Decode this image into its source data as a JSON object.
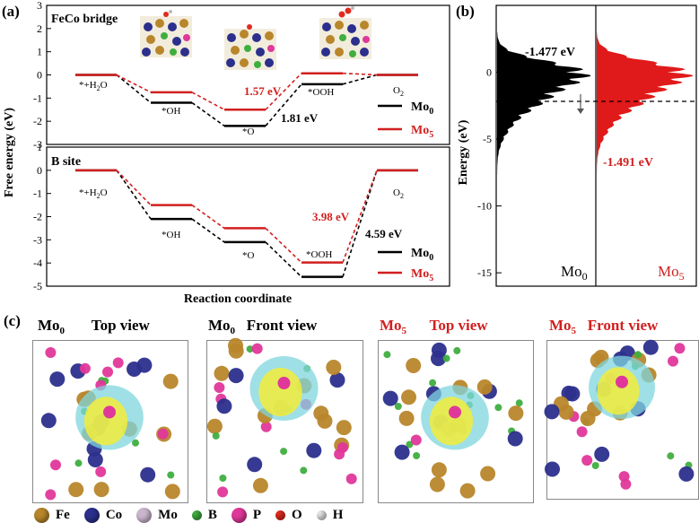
{
  "chart_data": [
    {
      "panel": "(a)",
      "type": "line",
      "subplot": "FeCo bridge",
      "x_categories": [
        "*+H2O",
        "*OH",
        "*O",
        "*OOH",
        "O2"
      ],
      "series": [
        {
          "name": "Mo0",
          "color": "#000000",
          "values": [
            0.0,
            -1.2,
            -2.2,
            -0.4,
            0.0
          ]
        },
        {
          "name": "Mo5",
          "color": "#d21f1f",
          "values": [
            0.0,
            -0.75,
            -1.5,
            0.07,
            0.0
          ]
        }
      ],
      "annotations": [
        "1.57 eV",
        "1.81 eV"
      ],
      "ylim": [
        -3,
        3
      ],
      "yticks": [
        "3",
        "2",
        "1",
        "0",
        "-1",
        "-2",
        "-3"
      ]
    },
    {
      "panel": "(a)",
      "type": "line",
      "subplot": "B site",
      "x_categories": [
        "*+H2O",
        "*OH",
        "*O",
        "*OOH",
        "O2"
      ],
      "series": [
        {
          "name": "Mo0",
          "color": "#000000",
          "values": [
            0.0,
            -2.1,
            -3.1,
            -4.6,
            0.0
          ]
        },
        {
          "name": "Mo5",
          "color": "#d21f1f",
          "values": [
            0.0,
            -1.5,
            -2.5,
            -3.98,
            0.0
          ]
        }
      ],
      "annotations": [
        "3.98 eV",
        "4.59 eV"
      ],
      "ylim": [
        -5,
        1
      ],
      "yticks": [
        "1",
        "0",
        "-1",
        "-2",
        "-3",
        "-4",
        "-5"
      ]
    },
    {
      "panel": "(b)",
      "type": "area",
      "series": [
        {
          "name": "Mo0",
          "color": "#000000",
          "d_band_center": -1.477
        },
        {
          "name": "Mo5",
          "color": "#d21f1f",
          "d_band_center": -1.491
        }
      ],
      "ylim": [
        -16,
        5
      ],
      "yticks": [
        "0",
        "-5",
        "-10",
        "-15"
      ],
      "ylabel": "Energy (eV)"
    }
  ],
  "text": {
    "panel_a": "(a)",
    "panel_b": "(b)",
    "panel_c": "(c)",
    "subplot_top_title": "FeCo bridge",
    "subplot_bottom_title": "B site",
    "ylabel_a": "Free energy (eV)",
    "xlabel_a": "Reaction coordinate",
    "ylabel_b": "Energy (eV)",
    "int_h2o": "*+H",
    "int_h2o_sub": "2",
    "int_h2o_end": "O",
    "int_oh": "*OH",
    "int_o": "*O",
    "int_ooh": "*OOH",
    "int_o2": "O",
    "int_o2_sub": "2",
    "ann_top_red": "1.57 eV",
    "ann_top_black": "1.81 eV",
    "ann_bot_red": "3.98 eV",
    "ann_bot_black": "4.59 eV",
    "legend_mo": "Mo",
    "legend_mo0_sub": "0",
    "legend_mo5_sub": "5",
    "dos_mo0_value": "-1.477 eV",
    "dos_mo5_value": "-1.491 eV"
  },
  "views": [
    {
      "label": "Mo",
      "sub": "0",
      "view": "Top view",
      "color": "#000000"
    },
    {
      "label": "Mo",
      "sub": "0",
      "view": "Front view",
      "color": "#000000"
    },
    {
      "label": "Mo",
      "sub": "5",
      "view": "Top view",
      "color": "#d21f1f"
    },
    {
      "label": "Mo",
      "sub": "5",
      "view": "Front view",
      "color": "#d21f1f"
    }
  ],
  "legend": [
    {
      "name": "Fe",
      "color": "#b8862b"
    },
    {
      "name": "Co",
      "color": "#2c2f8c"
    },
    {
      "name": "Mo",
      "color": "#c9b6cc"
    },
    {
      "name": "B",
      "color": "#3fae3f"
    },
    {
      "name": "P",
      "color": "#e0379a"
    },
    {
      "name": "O",
      "color": "#e02b1e"
    },
    {
      "name": "H",
      "color": "#e6e6e6"
    }
  ]
}
